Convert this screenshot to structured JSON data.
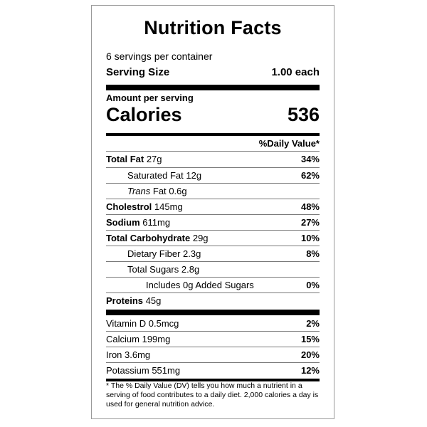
{
  "title": "Nutrition Facts",
  "servings_per_container": "6 servings per container",
  "serving_size": {
    "label": "Serving Size",
    "value": "1.00 each"
  },
  "amount_per_serving": "Amount per serving",
  "calories": {
    "label": "Calories",
    "value": "536"
  },
  "daily_value_header": "%Daily Value*",
  "nutrients": [
    {
      "name": "Total Fat",
      "amount": "27g",
      "dv": "34%"
    },
    {
      "name": "Saturated Fat",
      "amount": "12g",
      "dv": "62%"
    },
    {
      "name": "Trans",
      "name_rest": "Fat",
      "amount": "0.6g",
      "dv": ""
    },
    {
      "name": "Cholestrol",
      "amount": "145mg",
      "dv": "48%"
    },
    {
      "name": "Sodium",
      "amount": "611mg",
      "dv": "27%"
    },
    {
      "name": "Total Carbohydrate",
      "amount": "29g",
      "dv": "10%"
    },
    {
      "name": "Dietary Fiber",
      "amount": "2.3g",
      "dv": "8%"
    },
    {
      "name": "Total Sugars",
      "amount": "2.8g",
      "dv": ""
    },
    {
      "name": "Includes 0g Added Sugars",
      "amount": "",
      "dv": "0%"
    },
    {
      "name": "Proteins",
      "amount": "45g",
      "dv": ""
    }
  ],
  "vitamins": [
    {
      "name": "Vitamin D",
      "amount": "0.5mcg",
      "dv": "2%"
    },
    {
      "name": "Calcium",
      "amount": "199mg",
      "dv": "15%"
    },
    {
      "name": "Iron",
      "amount": "3.6mg",
      "dv": "20%"
    },
    {
      "name": "Potassium",
      "amount": "551mg",
      "dv": "12%"
    }
  ],
  "footnote": "* The % Daily Value (DV) tells you how much a nutrient in a serving of food contributes to a daily diet. 2,000 calories a day is used for general nutrition advice."
}
